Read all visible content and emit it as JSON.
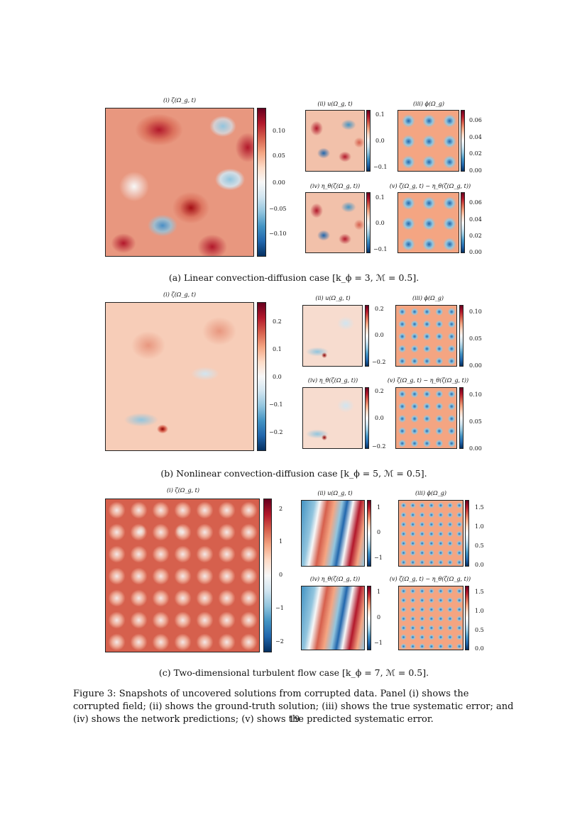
{
  "figure": {
    "panels": [
      {
        "caption": "(a) Linear convection-diffusion case [k_ϕ = 3, ℳ = 0.5].",
        "main_title": "(i) ζ(Ω_g, t)",
        "main_ticks": [
          "0.10",
          "0.05",
          "0.00",
          "−0.05",
          "−0.10"
        ],
        "sub": [
          {
            "title": "(ii) u(Ω_g, t)",
            "ticks": [
              "0.1",
              "0.0",
              "−0.1"
            ]
          },
          {
            "title": "(iii) ϕ(Ω_g)",
            "ticks": [
              "0.06",
              "0.04",
              "0.02",
              "0.00"
            ]
          },
          {
            "title": "(iv) η_θ(ζ(Ω_g, t))",
            "ticks": [
              "0.1",
              "0.0",
              "−0.1"
            ]
          },
          {
            "title": "(v) ζ(Ω_g, t) − η_θ(ζ(Ω_g, t))",
            "ticks": [
              "0.06",
              "0.04",
              "0.02",
              "0.00"
            ]
          }
        ]
      },
      {
        "caption": "(b) Nonlinear convection-diffusion case [k_ϕ = 5, ℳ = 0.5].",
        "main_title": "(i) ζ(Ω_g, t)",
        "main_ticks": [
          "0.2",
          "0.1",
          "0.0",
          "−0.1",
          "−0.2"
        ],
        "sub": [
          {
            "title": "(ii) u(Ω_g, t)",
            "ticks": [
              "0.2",
              "0.0",
              "−0.2"
            ]
          },
          {
            "title": "(iii) ϕ(Ω_g)",
            "ticks": [
              "0.10",
              "0.05",
              "0.00"
            ]
          },
          {
            "title": "(iv) η_θ(ζ(Ω_g, t))",
            "ticks": [
              "0.2",
              "0.0",
              "−0.2"
            ]
          },
          {
            "title": "(v) ζ(Ω_g, t) − η_θ(ζ(Ω_g, t))",
            "ticks": [
              "0.10",
              "0.05",
              "0.00"
            ]
          }
        ]
      },
      {
        "caption": "(c) Two-dimensional turbulent flow case [k_ϕ = 7, ℳ = 0.5].",
        "main_title": "(i) ζ(Ω_g, t)",
        "main_ticks": [
          "2",
          "1",
          "0",
          "−1",
          "−2"
        ],
        "sub": [
          {
            "title": "(ii) u(Ω_g, t)",
            "ticks": [
              "1",
              "0",
              "−1"
            ]
          },
          {
            "title": "(iii) ϕ(Ω_g)",
            "ticks": [
              "1.5",
              "1.0",
              "0.5",
              "0.0"
            ]
          },
          {
            "title": "(iv) η_θ(ζ(Ω_g, t))",
            "ticks": [
              "1",
              "0",
              "−1"
            ]
          },
          {
            "title": "(v) ζ(Ω_g, t) − η_θ(ζ(Ω_g, t))",
            "ticks": [
              "1.5",
              "1.0",
              "0.5",
              "0.0"
            ]
          }
        ]
      }
    ],
    "figure_caption": "Figure 3: Snapshots of uncovered solutions from corrupted data. Panel (i) shows the corrupted field; (ii) shows the ground-truth solution; (iii) shows the true systematic error; and (iv) shows the network predictions; (v) shows the predicted systematic error.",
    "page_number": "19",
    "colors": {
      "red": "#b2182b",
      "white": "#f7f7f7",
      "blue": "#2166ac"
    }
  }
}
